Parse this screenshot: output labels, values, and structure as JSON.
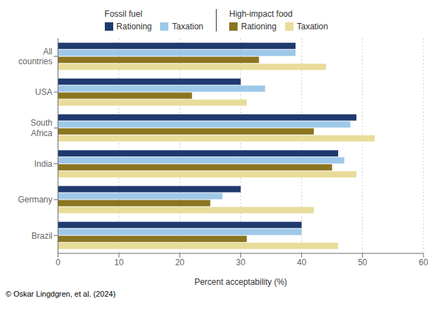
{
  "chart_data": {
    "type": "bar",
    "orientation": "horizontal",
    "xlabel": "Percent acceptability (%)",
    "categories": [
      "All\ncountries",
      "USA",
      "South\nAfrica",
      "India",
      "Germany",
      "Brazil"
    ],
    "series": [
      {
        "name": "Rationing",
        "group": "Fossil fuel",
        "color": "#1e3a6e",
        "values": [
          39,
          30,
          49,
          46,
          30,
          40
        ]
      },
      {
        "name": "Taxation",
        "group": "Fossil fuel",
        "color": "#9ec8e8",
        "values": [
          39,
          34,
          48,
          47,
          27,
          40
        ]
      },
      {
        "name": "Rationing",
        "group": "High-impact food",
        "color": "#8b7520",
        "values": [
          33,
          22,
          42,
          45,
          25,
          31
        ]
      },
      {
        "name": "Taxation",
        "group": "High-impact food",
        "color": "#e8dc9a",
        "values": [
          44,
          31,
          52,
          49,
          42,
          46
        ]
      }
    ],
    "xlim": [
      0,
      60
    ],
    "xticks": [
      0,
      10,
      20,
      30,
      40,
      50,
      60
    ],
    "grid": true,
    "legend": "top",
    "annotations": [
      "© Oskar Lingdgren, et al. (2024)"
    ]
  }
}
